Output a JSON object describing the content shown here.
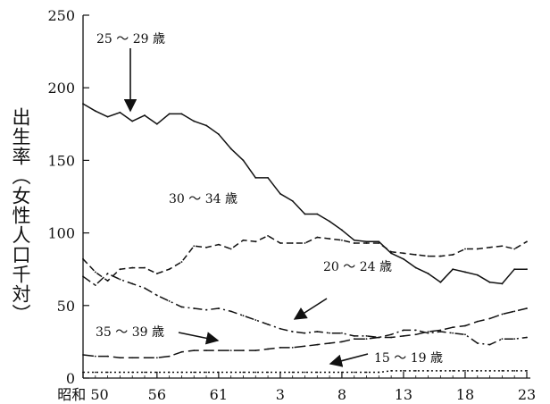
{
  "chart_data": {
    "type": "line",
    "title": "",
    "xlabel": "",
    "ylabel": "出生率（女性人口千対）",
    "ylim": [
      0,
      250
    ],
    "yticks": [
      0,
      50,
      100,
      150,
      200,
      250
    ],
    "x_tick_labels": [
      {
        "year": 1975,
        "label": "昭和 50"
      },
      {
        "year": 1981,
        "label": "56"
      },
      {
        "year": 1986,
        "label": "61"
      },
      {
        "year": 1991,
        "label": "3"
      },
      {
        "year": 1996,
        "label": "8"
      },
      {
        "year": 2001,
        "label": "13"
      },
      {
        "year": 2006,
        "label": "18"
      },
      {
        "year": 2011,
        "label": "23"
      }
    ],
    "xlim": [
      1975,
      2011
    ],
    "grid": false,
    "legend": "inline annotations with arrows",
    "x": [
      1975,
      1976,
      1977,
      1978,
      1979,
      1980,
      1981,
      1982,
      1983,
      1984,
      1985,
      1986,
      1987,
      1988,
      1989,
      1990,
      1991,
      1992,
      1993,
      1994,
      1995,
      1996,
      1997,
      1998,
      1999,
      2000,
      2001,
      2002,
      2003,
      2004,
      2005,
      2006,
      2007,
      2008,
      2009,
      2010,
      2011
    ],
    "series": [
      {
        "name": "25 ～ 29 歳",
        "style": "solid",
        "values": [
          189,
          184,
          180,
          183,
          177,
          181,
          175,
          182,
          182,
          177,
          174,
          168,
          158,
          150,
          138,
          138,
          127,
          122,
          113,
          113,
          108,
          102,
          95,
          94,
          94,
          86,
          82,
          76,
          72,
          66,
          75,
          73,
          71,
          66,
          65,
          75,
          75
        ]
      },
      {
        "name": "30 ～ 34 歳",
        "style": "dashed",
        "values": [
          82,
          73,
          67,
          75,
          76,
          76,
          72,
          75,
          80,
          91,
          90,
          92,
          89,
          95,
          94,
          98,
          93,
          93,
          93,
          97,
          96,
          95,
          93,
          93,
          93,
          87,
          86,
          85,
          84,
          84,
          85,
          89,
          89,
          90,
          91,
          89,
          94
        ]
      },
      {
        "name": "20 ～ 24 歳",
        "style": "dashdot",
        "values": [
          70,
          64,
          72,
          68,
          65,
          62,
          57,
          53,
          49,
          48,
          47,
          48,
          46,
          43,
          40,
          37,
          34,
          32,
          31,
          32,
          31,
          31,
          29,
          29,
          28,
          30,
          33,
          33,
          31,
          32,
          31,
          30,
          24,
          23,
          27,
          27,
          28
        ]
      },
      {
        "name": "35 ～ 39 歳",
        "style": "longdash",
        "values": [
          16,
          15,
          15,
          14,
          14,
          14,
          14,
          15,
          18,
          19,
          19,
          19,
          19,
          19,
          19,
          20,
          21,
          21,
          22,
          23,
          24,
          25,
          27,
          27,
          28,
          28,
          29,
          30,
          32,
          33,
          35,
          36,
          39,
          41,
          44,
          46,
          48
        ]
      },
      {
        "name": "15 ～ 19 歳",
        "style": "dotted",
        "values": [
          4,
          4,
          4,
          4,
          4,
          4,
          4,
          4,
          4,
          4,
          4,
          4,
          4,
          4,
          4,
          4,
          4,
          4,
          4,
          4,
          4,
          4,
          4,
          4,
          4,
          5,
          5,
          5,
          5,
          5,
          5,
          5,
          5,
          5,
          5,
          5,
          5
        ]
      }
    ],
    "annotations": [
      {
        "text": "25 ～ 29 歳",
        "series": "25 ～ 29 歳"
      },
      {
        "text": "30 ～ 34 歳",
        "series": "30 ～ 34 歳"
      },
      {
        "text": "20 ～ 24 歳",
        "series": "20 ～ 24 歳"
      },
      {
        "text": "35 ～ 39 歳",
        "series": "35 ～ 39 歳"
      },
      {
        "text": "15 ～ 19 歳",
        "series": "15 ～ 19 歳"
      }
    ]
  }
}
